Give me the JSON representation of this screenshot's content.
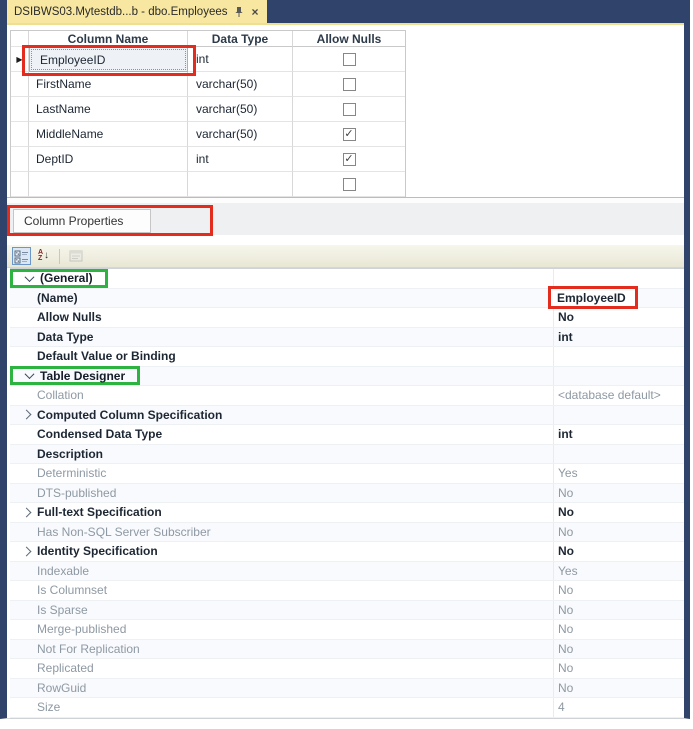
{
  "doc_tab": {
    "title": "DSIBWS03.Mytestdb...b - dbo.Employees",
    "close_glyph": "×"
  },
  "designer_grid": {
    "headers": [
      "Column Name",
      "Data Type",
      "Allow Nulls"
    ],
    "selected_row_marker": "▶",
    "check_glyph": "✓",
    "rows": [
      {
        "name": "EmployeeID",
        "type": "int",
        "allow_nulls": false,
        "selected": true,
        "annotation": "red"
      },
      {
        "name": "FirstName",
        "type": "varchar(50)",
        "allow_nulls": false
      },
      {
        "name": "LastName",
        "type": "varchar(50)",
        "allow_nulls": false
      },
      {
        "name": "MiddleName",
        "type": "varchar(50)",
        "allow_nulls": true
      },
      {
        "name": "DeptID",
        "type": "int",
        "allow_nulls": true
      },
      {
        "name": "",
        "type": "",
        "allow_nulls": false
      }
    ]
  },
  "properties_panel": {
    "tab_label": "Column Properties",
    "toolbar": {
      "categorized": "categorized-icon",
      "alphabetical": "sort-alphabetical-icon",
      "property_pages": "property-pages-icon",
      "az_top": "A",
      "az_bottom": "Z",
      "az_arrow": "↓"
    },
    "rows": [
      {
        "label": "(General)",
        "style": "category",
        "expander": "expanded",
        "label_box": "green"
      },
      {
        "label": "(Name)",
        "value": "EmployeeID",
        "style": "bold",
        "value_style": "bold",
        "value_box": "red"
      },
      {
        "label": "Allow Nulls",
        "value": "No",
        "style": "bold",
        "value_style": "bold"
      },
      {
        "label": "Data Type",
        "value": "int",
        "style": "bold",
        "value_style": "bold"
      },
      {
        "label": "Default Value or Binding",
        "value": "",
        "style": "bold"
      },
      {
        "label": "Table Designer",
        "style": "category",
        "expander": "expanded",
        "label_box": "green"
      },
      {
        "label": "Collation",
        "value": "<database default>",
        "style": "gray",
        "value_style": "gray"
      },
      {
        "label": "Computed Column Specification",
        "value": "",
        "style": "bold",
        "expander": "collapsed"
      },
      {
        "label": "Condensed Data Type",
        "value": "int",
        "style": "bold",
        "value_style": "bold"
      },
      {
        "label": "Description",
        "value": "",
        "style": "bold"
      },
      {
        "label": "Deterministic",
        "value": "Yes",
        "style": "gray",
        "value_style": "gray"
      },
      {
        "label": "DTS-published",
        "value": "No",
        "style": "gray",
        "value_style": "gray"
      },
      {
        "label": "Full-text Specification",
        "value": "No",
        "style": "bold",
        "expander": "collapsed",
        "value_style": "bold"
      },
      {
        "label": "Has Non-SQL Server Subscriber",
        "value": "No",
        "style": "gray",
        "value_style": "gray"
      },
      {
        "label": "Identity Specification",
        "value": "No",
        "style": "bold",
        "expander": "collapsed",
        "value_style": "bold"
      },
      {
        "label": "Indexable",
        "value": "Yes",
        "style": "gray",
        "value_style": "gray"
      },
      {
        "label": "Is Columnset",
        "value": "No",
        "style": "gray",
        "value_style": "gray"
      },
      {
        "label": "Is Sparse",
        "value": "No",
        "style": "gray",
        "value_style": "gray"
      },
      {
        "label": "Merge-published",
        "value": "No",
        "style": "gray",
        "value_style": "gray"
      },
      {
        "label": "Not For Replication",
        "value": "No",
        "style": "gray",
        "value_style": "gray"
      },
      {
        "label": "Replicated",
        "value": "No",
        "style": "gray",
        "value_style": "gray"
      },
      {
        "label": "RowGuid",
        "value": "No",
        "style": "gray",
        "value_style": "gray"
      },
      {
        "label": "Size",
        "value": "4",
        "style": "gray",
        "value_style": "gray"
      }
    ]
  },
  "colors": {
    "annotation_red": "#e32b1e",
    "annotation_green": "#2db440",
    "tab_yellow": "#f8e7a0",
    "window_navy": "#30436a"
  }
}
